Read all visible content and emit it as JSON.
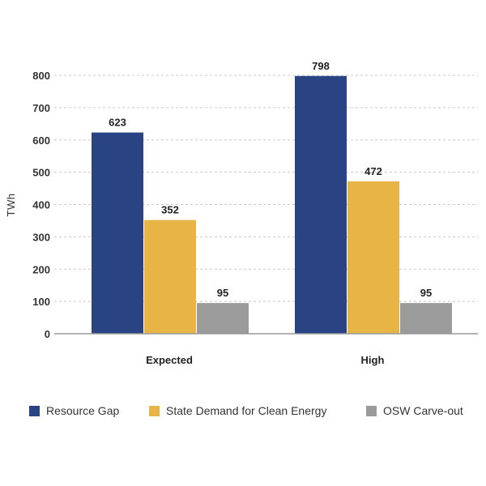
{
  "chart_data": {
    "type": "bar",
    "categories": [
      "Expected",
      "High"
    ],
    "series": [
      {
        "name": "Resource Gap",
        "values": [
          623,
          798
        ],
        "color": "#2a4483"
      },
      {
        "name": "State Demand for Clean Energy",
        "values": [
          352,
          472
        ],
        "color": "#e8b445"
      },
      {
        "name": "OSW Carve-out",
        "values": [
          95,
          95
        ],
        "color": "#9b9b9b"
      }
    ],
    "title": "",
    "xlabel": "",
    "ylabel": "TWh",
    "ylim": [
      0,
      800
    ],
    "yticks": [
      0,
      100,
      200,
      300,
      400,
      500,
      600,
      700,
      800
    ],
    "grid": true,
    "legend_position": "bottom",
    "data_labels": true
  }
}
